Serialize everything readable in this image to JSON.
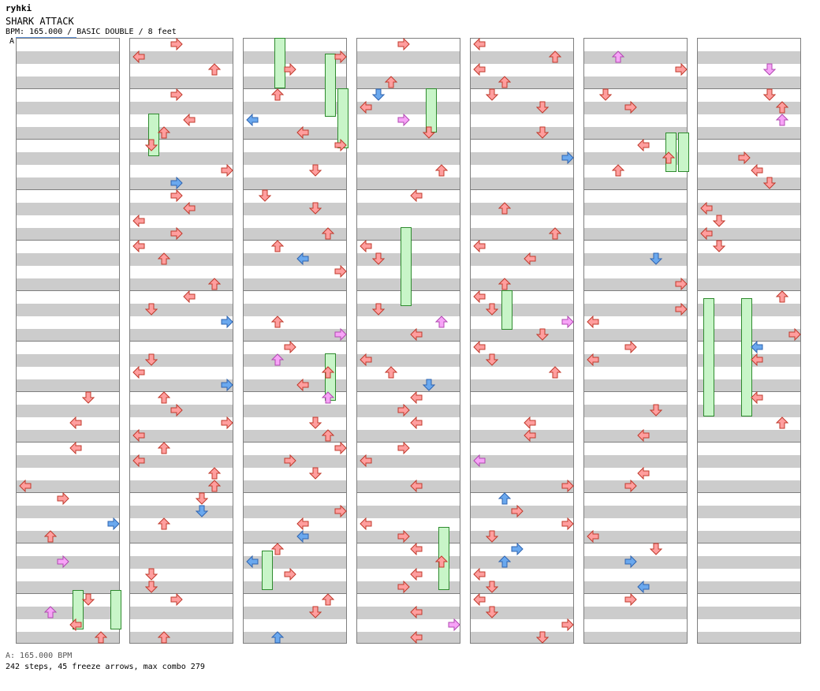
{
  "header": {
    "author": "ryhki",
    "title": "SHARK ATTACK",
    "meta": "BPM: 165.000 / BASIC DOUBLE / 8 feet",
    "bpm_marker": "A"
  },
  "footer": {
    "bpm_info": "A: 165.000 BPM",
    "stats": "242 steps, 45 freeze arrows, max combo 279"
  },
  "chart_data": {
    "type": "other",
    "description_style": "dance step chart, 7 columns of 12 measures each",
    "lanes": [
      "L1",
      "D1",
      "U1",
      "R1",
      "L2",
      "D2",
      "U2",
      "R2"
    ],
    "colors": {
      "quarter": "#ff9e9e",
      "eighth": "#6aa8ee",
      "sixteenth": "#f7a3f7",
      "freeze": "#c8f5c8"
    }
  }
}
